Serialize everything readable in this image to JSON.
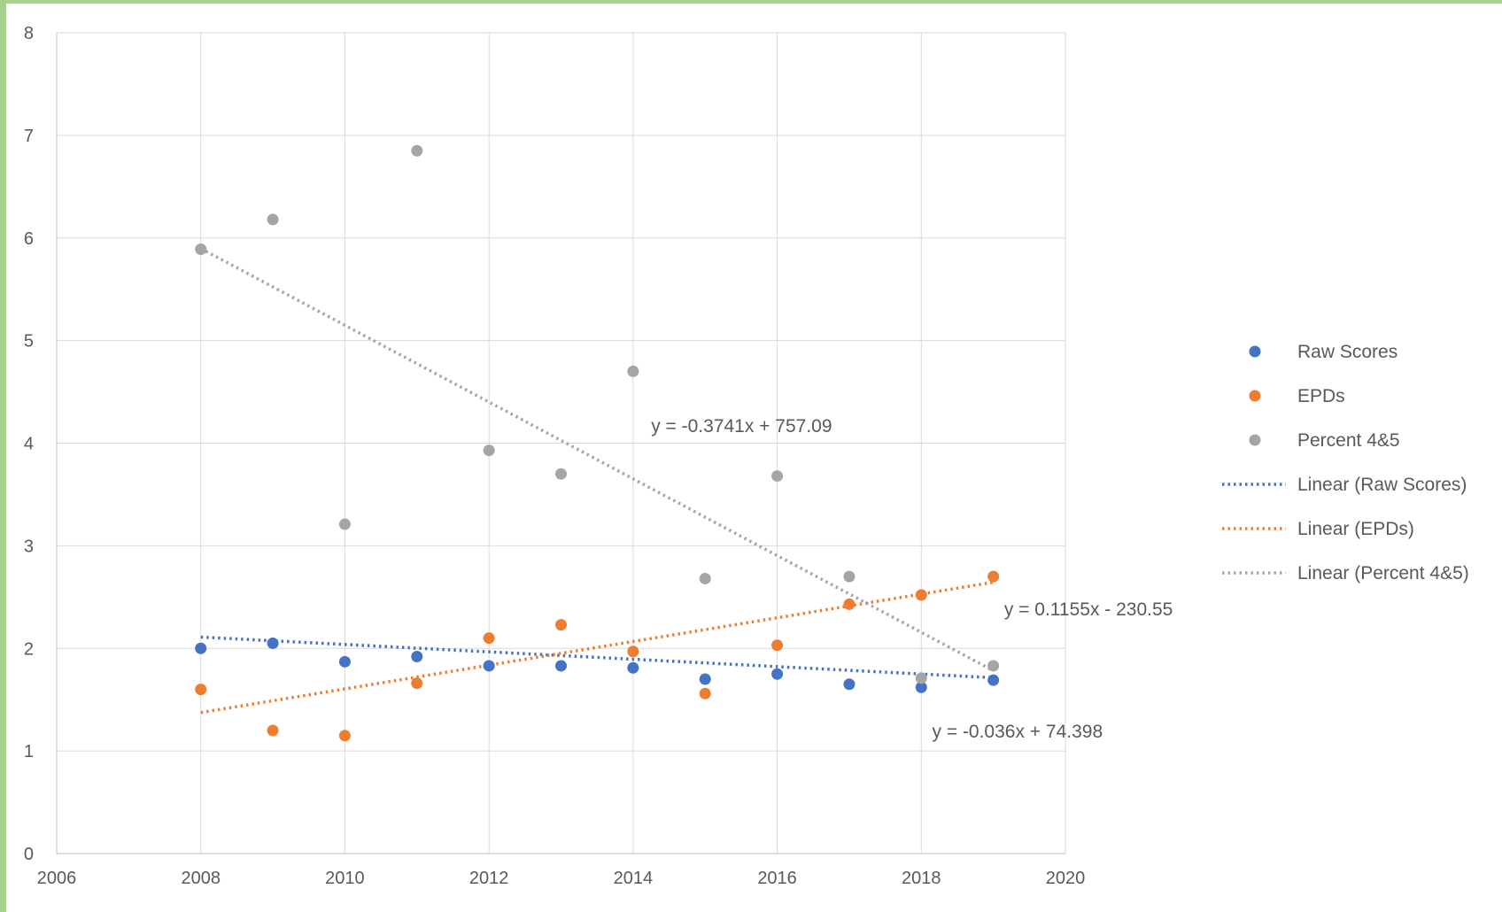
{
  "chart_data": {
    "type": "scatter",
    "title": "",
    "xlabel": "",
    "ylabel": "",
    "xlim": [
      2006,
      2020
    ],
    "ylim": [
      0,
      8
    ],
    "x_ticks": [
      "2006",
      "2008",
      "2010",
      "2012",
      "2014",
      "2016",
      "2018",
      "2020"
    ],
    "y_ticks": [
      "0",
      "1",
      "2",
      "3",
      "4",
      "5",
      "6",
      "7",
      "8"
    ],
    "grid": true,
    "legend_position": "right",
    "series": [
      {
        "name": "Raw Scores",
        "color": "#4472c4",
        "points": [
          [
            2008,
            2.0
          ],
          [
            2009,
            2.05
          ],
          [
            2010,
            1.87
          ],
          [
            2011,
            1.92
          ],
          [
            2012,
            1.83
          ],
          [
            2013,
            1.83
          ],
          [
            2014,
            1.81
          ],
          [
            2015,
            1.7
          ],
          [
            2016,
            1.75
          ],
          [
            2017,
            1.65
          ],
          [
            2018,
            1.62
          ],
          [
            2019,
            1.69
          ]
        ]
      },
      {
        "name": "EPDs",
        "color": "#ed7d31",
        "points": [
          [
            2008,
            1.6
          ],
          [
            2009,
            1.2
          ],
          [
            2010,
            1.15
          ],
          [
            2011,
            1.66
          ],
          [
            2012,
            2.1
          ],
          [
            2013,
            2.23
          ],
          [
            2014,
            1.97
          ],
          [
            2015,
            1.56
          ],
          [
            2016,
            2.03
          ],
          [
            2017,
            2.43
          ],
          [
            2018,
            2.52
          ],
          [
            2019,
            2.7
          ]
        ]
      },
      {
        "name": "Percent 4&5",
        "color": "#a5a5a5",
        "points": [
          [
            2008,
            5.89
          ],
          [
            2009,
            6.18
          ],
          [
            2010,
            3.21
          ],
          [
            2011,
            6.85
          ],
          [
            2012,
            3.93
          ],
          [
            2013,
            3.7
          ],
          [
            2014,
            4.7
          ],
          [
            2015,
            2.68
          ],
          [
            2016,
            3.68
          ],
          [
            2017,
            2.7
          ],
          [
            2018,
            1.71
          ],
          [
            2019,
            1.83
          ]
        ]
      }
    ],
    "trendlines": [
      {
        "name": "Linear (Raw Scores)",
        "color": "#4472c4",
        "slope": -0.036,
        "intercept": 74.398,
        "equation": "y = -0.036x + 74.398",
        "x_range": [
          2008,
          2019
        ]
      },
      {
        "name": "Linear (EPDs)",
        "color": "#ed7d31",
        "slope": 0.1155,
        "intercept": -230.55,
        "equation": "y = 0.1155x  - 230.55",
        "x_range": [
          2008,
          2019
        ]
      },
      {
        "name": "Linear (Percent 4&5)",
        "color": "#a5a5a5",
        "slope": -0.3741,
        "intercept": 757.09,
        "equation": "y = -0.3741x + 757.09",
        "x_range": [
          2008,
          2019
        ]
      }
    ]
  }
}
